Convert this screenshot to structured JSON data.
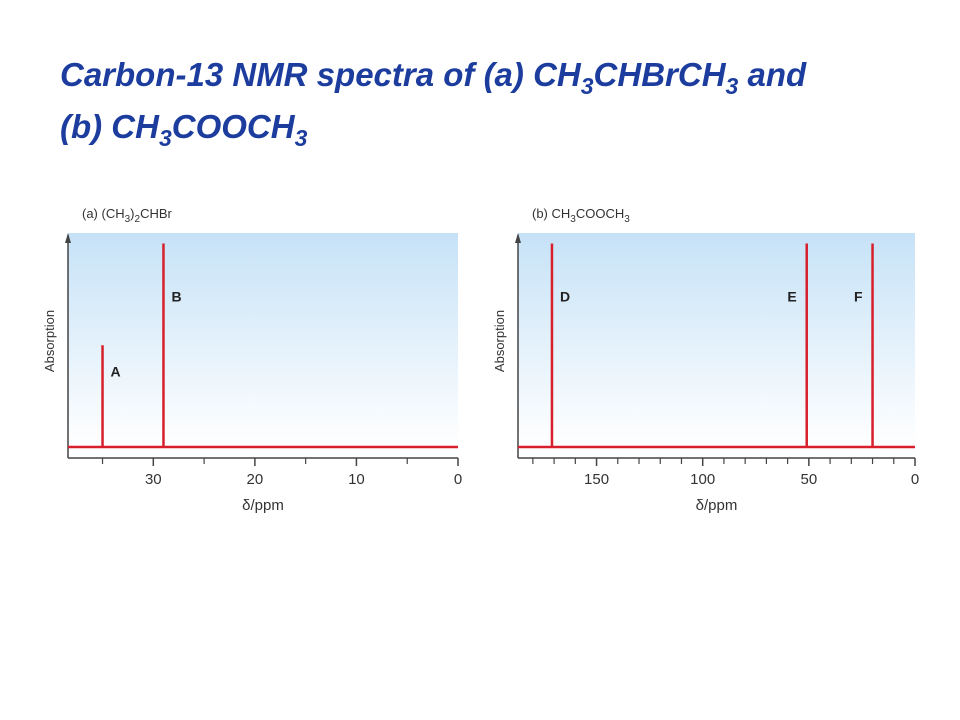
{
  "title": [
    [
      "Carbon-13 NMR spectra of (a) CH",
      "3",
      "CHBrCH",
      "3",
      " and"
    ],
    [
      "(b) CH",
      "3",
      "COOCH",
      "3"
    ]
  ],
  "chart_data": [
    {
      "type": "spectrum",
      "subtitle": [
        "(a) (CH",
        "3",
        ")",
        "2",
        "CHBr"
      ],
      "ylabel": "Absorption",
      "xlabel": "δ/ppm",
      "x": [
        35,
        29
      ],
      "values": [
        48,
        96
      ],
      "labels": [
        "A",
        "B"
      ],
      "color": "#d7202b",
      "xlim": [
        38.4,
        0
      ],
      "xticks": [
        30,
        20,
        10,
        0
      ],
      "xminor_ticks": [
        35,
        25,
        15,
        5
      ],
      "ylim": [
        0,
        100
      ]
    },
    {
      "type": "spectrum",
      "subtitle": [
        "(b) CH",
        "3",
        "COOCH",
        "3"
      ],
      "ylabel": "Absorption",
      "xlabel": "δ/ppm",
      "x": [
        171,
        51,
        20
      ],
      "values": [
        96,
        96,
        96
      ],
      "labels": [
        "D",
        "E",
        "F"
      ],
      "color": "#d7202b",
      "xlim": [
        187,
        0
      ],
      "xticks": [
        150,
        100,
        50,
        0
      ],
      "xminor_ticks": [
        180,
        170,
        160,
        140,
        130,
        120,
        110,
        90,
        80,
        70,
        60,
        40,
        30,
        20,
        10
      ],
      "ylim": [
        0,
        100
      ]
    }
  ]
}
